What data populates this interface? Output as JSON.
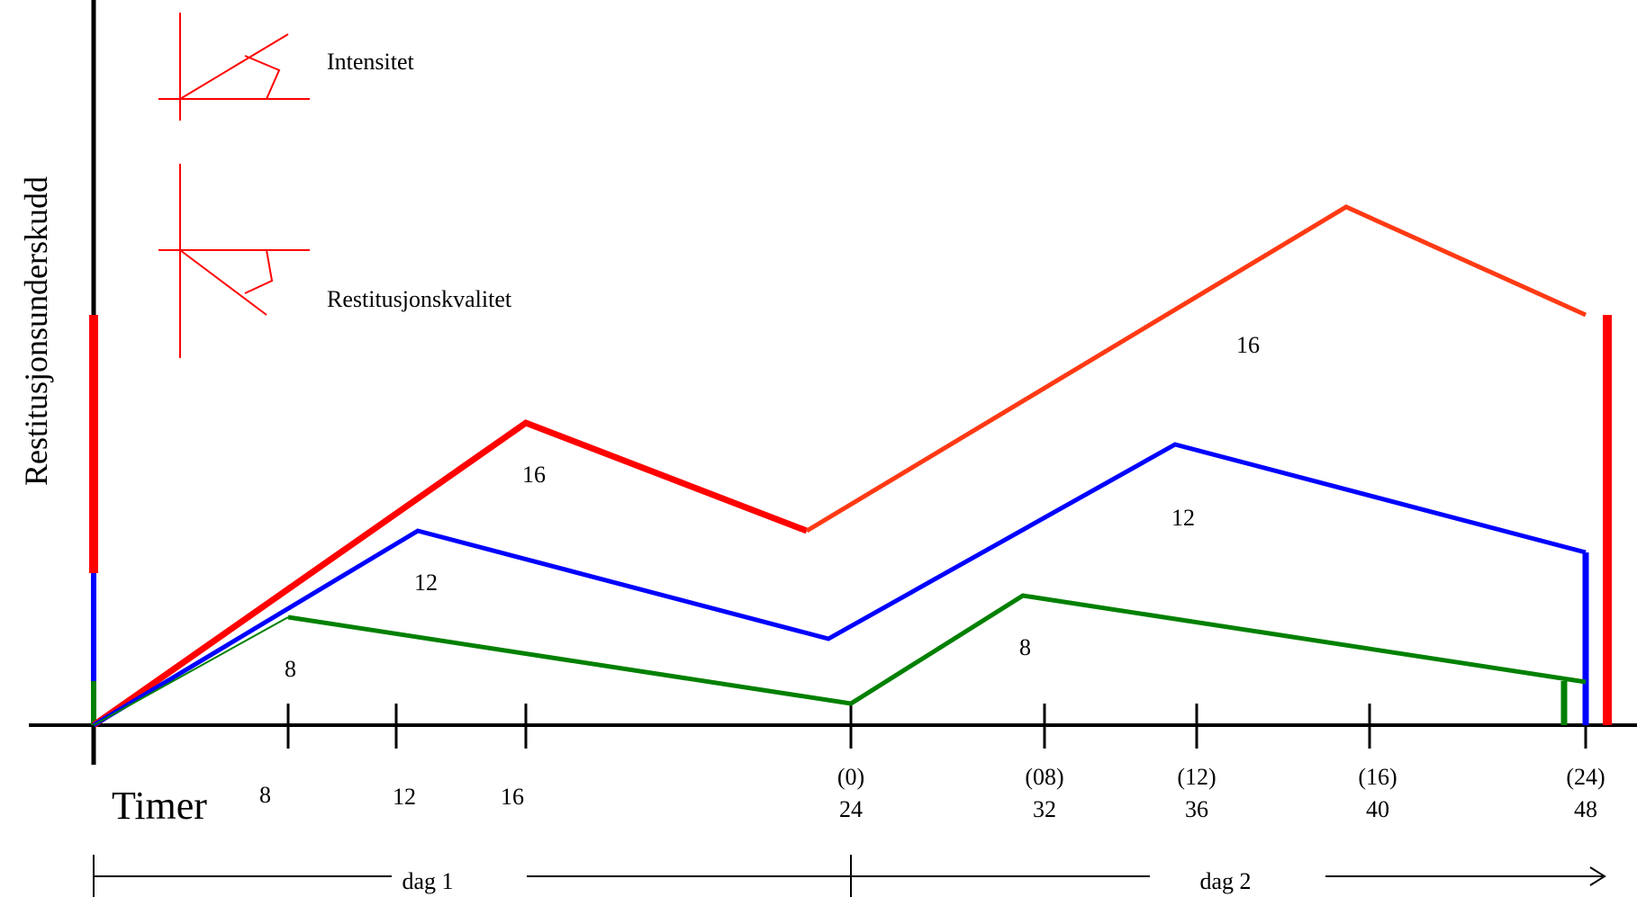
{
  "colors": {
    "axis": "#000000",
    "red": "#ff0000",
    "orange_red": "#ff3a14",
    "blue": "#0000ff",
    "green": "#008000",
    "legend": "#ff0000"
  },
  "ylabel": "Restitusjonsunderskudd",
  "xlabel": "Timer",
  "legend": {
    "intensity": "Intensitet",
    "quality": "Restitusjonskvalitet"
  },
  "ticks": {
    "day1": [
      "8",
      "12",
      "16"
    ],
    "day2": [
      {
        "hours": "(0)",
        "total": "24"
      },
      {
        "hours": "(08)",
        "total": "32"
      },
      {
        "hours": "(12)",
        "total": "36"
      },
      {
        "hours": "(16)",
        "total": "40"
      },
      {
        "hours": "(24)",
        "total": "48"
      }
    ]
  },
  "days": {
    "day1": "dag 1",
    "day2": "dag 2"
  },
  "series_labels": {
    "red_day1": "16",
    "blue_day1": "12",
    "green_day1": "8",
    "red_day2": "16",
    "blue_day2": "12",
    "green_day2": "8"
  },
  "chart_data": {
    "type": "line",
    "series": [
      {
        "label": "16",
        "color": "red",
        "x": [
          0,
          16,
          24,
          40,
          48
        ]
      },
      {
        "label": "12",
        "color": "blue",
        "x": [
          0,
          12,
          24,
          36,
          48
        ]
      },
      {
        "label": "8",
        "color": "green",
        "x": [
          0,
          8,
          24,
          32,
          48
        ]
      }
    ]
  }
}
